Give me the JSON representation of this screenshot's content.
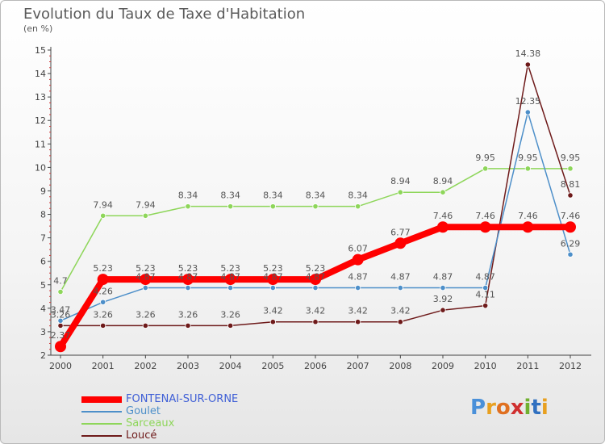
{
  "title": "Evolution du Taux de Taxe d'Habitation",
  "subtitle": "(en %)",
  "logo": {
    "text": "Proxiti",
    "letters": [
      "P",
      "r",
      "o",
      "x",
      "i",
      "t",
      "i"
    ],
    "colors": [
      "#4a90d9",
      "#e8a020",
      "#e07020",
      "#d03030",
      "#70b030",
      "#3070c0",
      "#e8a020"
    ]
  },
  "chart_data": {
    "type": "line",
    "title": "Evolution du Taux de Taxe d'Habitation",
    "ylabel": "(en %)",
    "xlabel": "",
    "x": [
      "2000",
      "2001",
      "2002",
      "2003",
      "2004",
      "2005",
      "2006",
      "2007",
      "2008",
      "2009",
      "2010",
      "2011",
      "2012"
    ],
    "y_ticks": [
      "2",
      "3",
      "4",
      "5",
      "6",
      "7",
      "8",
      "9",
      "10",
      "11",
      "12",
      "13",
      "14",
      "15"
    ],
    "ylim": [
      2,
      15
    ],
    "grid": false,
    "legend_position": "bottom-left",
    "series": [
      {
        "name": "FONTENAI-SUR-ORNE",
        "color": "#ff0000",
        "values": [
          2.37,
          5.23,
          5.23,
          5.23,
          5.23,
          5.23,
          5.23,
          6.07,
          6.77,
          7.46,
          7.46,
          7.46,
          7.46
        ],
        "labels": [
          "2.37",
          "5.23",
          "5.23",
          "5.23",
          "5.23",
          "5.23",
          "5.23",
          "6.07",
          "6.77",
          "7.46",
          "7.46",
          "7.46",
          "7.46"
        ]
      },
      {
        "name": "Goulet",
        "color": "#4d8fc9",
        "values": [
          3.47,
          4.26,
          4.87,
          4.87,
          4.87,
          4.87,
          4.87,
          4.87,
          4.87,
          4.87,
          4.87,
          12.35,
          6.29
        ],
        "labels": [
          "3.47",
          "4.26",
          "4.87",
          "4.87",
          "4.87",
          "4.87",
          "4.87",
          "4.87",
          "4.87",
          "4.87",
          "4.87",
          "12.35",
          "6.29"
        ]
      },
      {
        "name": "Sarceaux",
        "color": "#8ed65a",
        "values": [
          4.7,
          7.94,
          7.94,
          8.34,
          8.34,
          8.34,
          8.34,
          8.34,
          8.94,
          8.94,
          9.95,
          9.95,
          9.95
        ],
        "labels": [
          "4.7",
          "7.94",
          "7.94",
          "8.34",
          "8.34",
          "8.34",
          "8.34",
          "8.34",
          "8.94",
          "8.94",
          "9.95",
          "9.95",
          "9.95"
        ]
      },
      {
        "name": "Loucé",
        "color": "#6e1a1a",
        "values": [
          3.26,
          3.26,
          3.26,
          3.26,
          3.26,
          3.42,
          3.42,
          3.42,
          3.42,
          3.92,
          4.11,
          14.38,
          8.81
        ],
        "labels": [
          "3.26",
          "3.26",
          "3.26",
          "3.26",
          "3.26",
          "3.42",
          "3.42",
          "3.42",
          "3.42",
          "3.92",
          "4.11",
          "14.38",
          "8.81"
        ]
      }
    ]
  }
}
